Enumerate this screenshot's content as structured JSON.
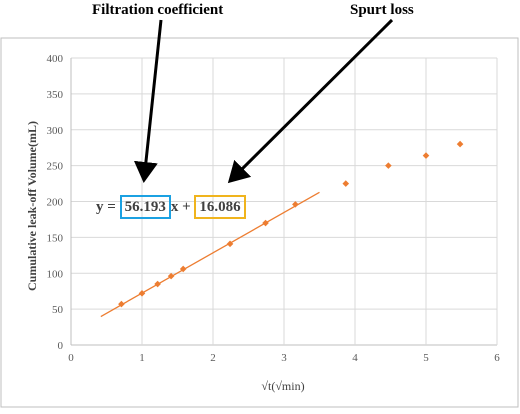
{
  "annotations": {
    "filtration_label": "Filtration coefficient",
    "spurt_label": "Spurt loss"
  },
  "equation": {
    "prefix": "y = ",
    "slope": "56.193",
    "middle": "x + ",
    "intercept": "16.086"
  },
  "colors": {
    "marker": "#ed7d31",
    "fit_line": "#ed7d31",
    "grid": "#d9d9d9",
    "slope_box": "#1ba1e2",
    "intercept_box": "#f0b41d"
  },
  "chart_data": {
    "type": "scatter",
    "title": "",
    "xlabel": "√t(√min)",
    "ylabel": "Cumulative leak-off Volume(mL)",
    "xlim": [
      0,
      6
    ],
    "ylim": [
      0,
      400
    ],
    "x_ticks": [
      "0",
      "1",
      "2",
      "3",
      "4",
      "5",
      "6"
    ],
    "y_ticks": [
      "0",
      "50",
      "100",
      "150",
      "200",
      "250",
      "300",
      "350",
      "400"
    ],
    "grid": true,
    "legend": "none",
    "series": [
      {
        "points": [
          {
            "x": 0.71,
            "y": 57
          },
          {
            "x": 1.0,
            "y": 72
          },
          {
            "x": 1.22,
            "y": 85
          },
          {
            "x": 1.41,
            "y": 96
          },
          {
            "x": 1.58,
            "y": 106
          },
          {
            "x": 2.24,
            "y": 141
          },
          {
            "x": 2.74,
            "y": 170
          },
          {
            "x": 3.16,
            "y": 196
          },
          {
            "x": 3.87,
            "y": 225
          },
          {
            "x": 4.47,
            "y": 250
          },
          {
            "x": 5.0,
            "y": 264
          },
          {
            "x": 5.48,
            "y": 280
          }
        ]
      }
    ],
    "trendline": {
      "slope": 56.193,
      "intercept": 16.086,
      "x_start": 0.42,
      "x_end": 3.5
    }
  }
}
